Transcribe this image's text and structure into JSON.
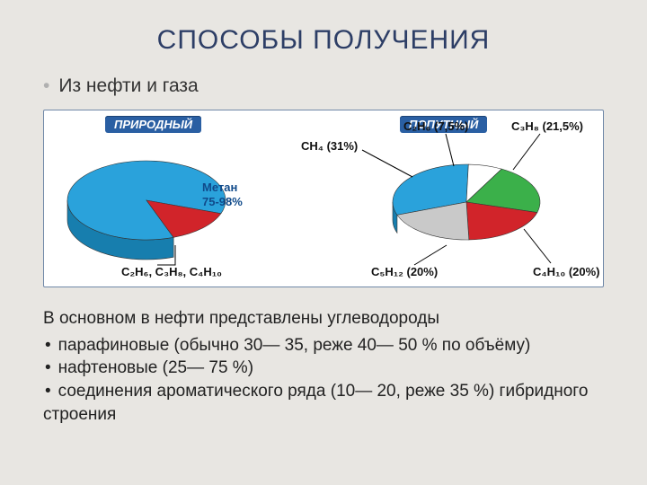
{
  "title": "СПОСОБЫ ПОЛУЧЕНИЯ",
  "subtitle": "Из нефти и газа",
  "charts_background": "#ffffff",
  "charts_border": "#7088a8",
  "pie1": {
    "tag": "ПРИРОДНЫЙ",
    "center_label_line1": "Метан",
    "center_label_line2": "75-98%",
    "bottom_label": "C₂H₆, C₃H₈, C₄H₁₀",
    "slices": [
      {
        "pct": 86,
        "color": "#2aa2db"
      },
      {
        "pct": 14,
        "color": "#d1242a"
      }
    ],
    "side_color": "#177eae",
    "side_color2": "#8f181d"
  },
  "pie2": {
    "tag": "ПОПУТНЫЙ",
    "labels": {
      "ch4": "CH₄ (31%)",
      "c2h6": "C₂H₆ (7,5%)",
      "c3h8": "C₃H₈ (21,5%)",
      "c4h10": "C₄H₁₀ (20%)",
      "c5h12": "C₅H₁₂ (20%)"
    },
    "slices": [
      {
        "name": "CH4",
        "pct": 31,
        "color": "#2aa2db",
        "side": "#177eae"
      },
      {
        "name": "C2H6",
        "pct": 7.5,
        "color": "#ffffff",
        "side": "#c9c9c9"
      },
      {
        "name": "C3H8",
        "pct": 21.5,
        "color": "#3bb04a",
        "side": "#2a7d34"
      },
      {
        "name": "C4H10",
        "pct": 20,
        "color": "#d1242a",
        "side": "#8f181d"
      },
      {
        "name": "C5H12",
        "pct": 20,
        "color": "#c9c9c9",
        "side": "#8a8a8a"
      }
    ]
  },
  "body_intro": "В основном в нефти представлены углеводороды",
  "body_items": [
    "парафиновые (обычно 30— 35, реже 40— 50 % по объёму)",
    "нафтеновые (25— 75 %)",
    "соединения ароматического ряда (10— 20, реже 35 %) гибридного строения"
  ]
}
